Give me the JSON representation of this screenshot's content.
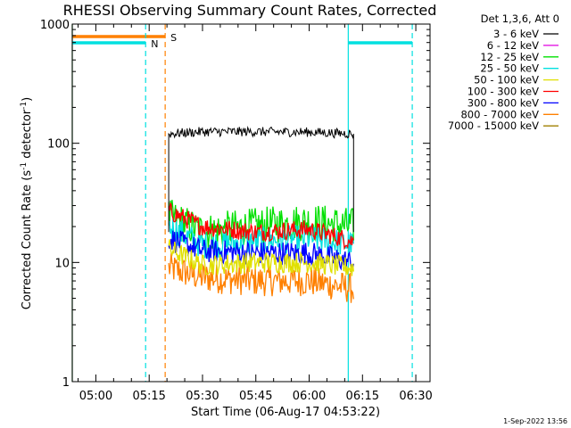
{
  "chart_data": {
    "type": "line",
    "title": "RHESSI Observing Summary Count Rates, Corrected",
    "xlabel": "Start Time (06-Aug-17 04:53:22)",
    "ylabel_prefix": "Corrected Count Rate (s",
    "ylabel_sup1": "-1",
    "ylabel_mid": " detector",
    "ylabel_sup2": "-1",
    "ylabel_suffix": ")",
    "y_scale": "log",
    "xlim": [
      "04:53:22",
      "06:34:00"
    ],
    "ylim": [
      1,
      1000
    ],
    "x_ticks": [
      "05:00",
      "05:15",
      "05:30",
      "05:45",
      "06:00",
      "06:15",
      "06:30"
    ],
    "y_ticks": [
      "1",
      "10",
      "100",
      "1000"
    ],
    "legend_title": "Det 1,3,6, Att 0",
    "legend_position": "top-right, outside plot",
    "series": [
      {
        "name": "3 - 6 keV",
        "color": "#000000",
        "x": [
          "05:20:30",
          "05:30",
          "05:45",
          "06:00",
          "06:12:30"
        ],
        "y": [
          120,
          125,
          125,
          124,
          120
        ]
      },
      {
        "name": "6 - 12 keV",
        "color": "#e000e0",
        "x": [],
        "y": []
      },
      {
        "name": "12 - 25 keV",
        "color": "#00e000",
        "x": [
          "05:20:30",
          "05:30",
          "05:45",
          "06:00",
          "06:12:30"
        ],
        "y": [
          24,
          18,
          20,
          22,
          20
        ]
      },
      {
        "name": "25 - 50 keV",
        "color": "#00e0e0",
        "x": [
          "05:20:30",
          "05:30",
          "05:45",
          "06:00",
          "06:12:30"
        ],
        "y": [
          20,
          14,
          15,
          16,
          14
        ]
      },
      {
        "name": "50 - 100 keV",
        "color": "#e0e000",
        "x": [
          "05:20:30",
          "05:30",
          "05:45",
          "06:00",
          "06:12:30"
        ],
        "y": [
          13,
          9.5,
          10,
          10,
          9
        ]
      },
      {
        "name": "100 - 300 keV",
        "color": "#ff0000",
        "x": [
          "05:20:30",
          "05:30",
          "05:45",
          "06:00",
          "06:12:30"
        ],
        "y": [
          27,
          20,
          18,
          19,
          15
        ]
      },
      {
        "name": "300 - 800 keV",
        "color": "#0000ff",
        "x": [
          "05:20:30",
          "05:30",
          "05:45",
          "06:00",
          "06:12:30"
        ],
        "y": [
          16,
          12.5,
          12,
          12,
          10
        ]
      },
      {
        "name": "800 - 7000 keV",
        "color": "#ff8000",
        "x": [
          "05:20:30",
          "05:30",
          "05:45",
          "06:00",
          "06:12:30"
        ],
        "y": [
          9,
          7.5,
          7,
          7,
          6
        ]
      },
      {
        "name": "7000 - 15000 keV",
        "color": "#a08000",
        "x": [],
        "y": []
      }
    ],
    "flags": [
      {
        "label": "S",
        "color": "#ff8000",
        "start": "04:53:22",
        "end": "05:19:30",
        "start_dashed": false,
        "end_dashed": true
      },
      {
        "label": "N",
        "color": "#00e0e0",
        "start": "04:53:22",
        "end": "05:14:00",
        "start_dashed": false,
        "end_dashed": true
      },
      {
        "label": "",
        "color": "#00e0e0",
        "start": "06:11:00",
        "end": "06:29:00",
        "start_dashed": false,
        "end_dashed": true
      }
    ],
    "timestamp": "1-Sep-2022 13:56"
  }
}
